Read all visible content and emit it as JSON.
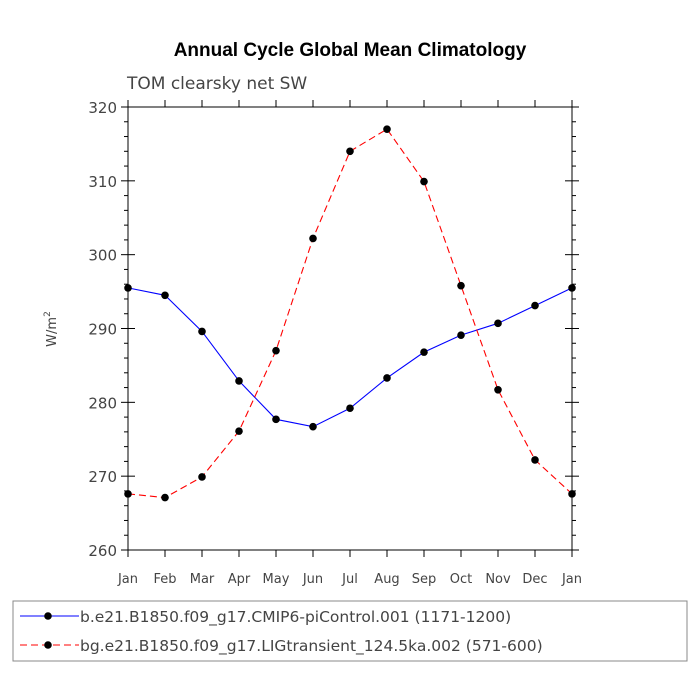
{
  "chart_data": {
    "type": "line",
    "title": "Annual Cycle Global Mean Climatology",
    "subtitle": "TOM clearsky net SW",
    "ylabel": "W/m",
    "ylabel_superscript": "2",
    "xlabel": "",
    "categories": [
      "Jan",
      "Feb",
      "Mar",
      "Apr",
      "May",
      "Jun",
      "Jul",
      "Aug",
      "Sep",
      "Oct",
      "Nov",
      "Dec",
      "Jan"
    ],
    "ylim": [
      260,
      320
    ],
    "yticks": [
      260,
      270,
      280,
      290,
      300,
      310,
      320
    ],
    "grid": false,
    "legend_position": "bottom",
    "series": [
      {
        "name": "b.e21.B1850.f09_g17.CMIP6-piControl.001 (1171-1200)",
        "color": "#0000ff",
        "line_style": "solid",
        "values": [
          295.5,
          294.5,
          289.6,
          282.9,
          277.7,
          276.7,
          279.2,
          283.3,
          286.8,
          289.1,
          290.7,
          293.1,
          295.5
        ]
      },
      {
        "name": "bg.e21.B1850.f09_g17.LIGtransient_124.5ka.002 (571-600)",
        "color": "#ff0000",
        "line_style": "dashed",
        "values": [
          267.6,
          267.1,
          269.9,
          276.1,
          287.0,
          302.2,
          314.0,
          317.0,
          309.9,
          295.8,
          281.7,
          272.2,
          267.6
        ]
      }
    ]
  }
}
